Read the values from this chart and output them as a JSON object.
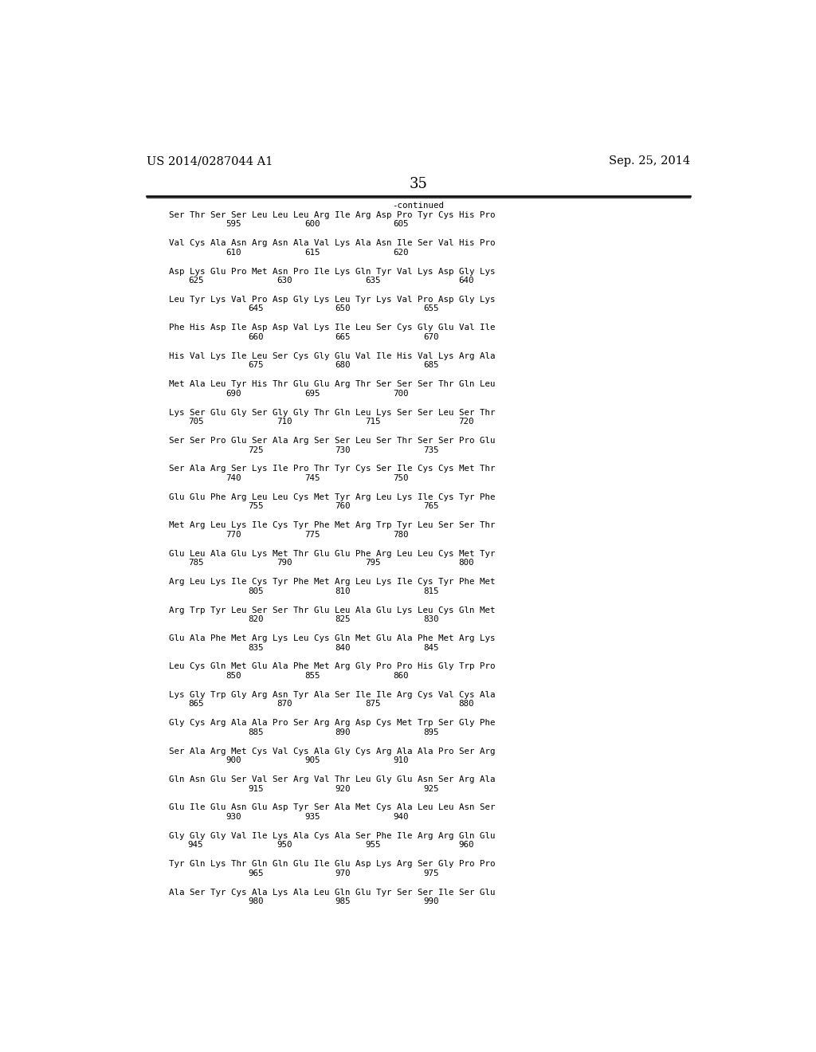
{
  "left_header": "US 2014/0287044 A1",
  "right_header": "Sep. 25, 2014",
  "page_number": "35",
  "continued_label": "-continued",
  "background_color": "#ffffff",
  "text_color": "#000000",
  "font_size_header": 10.5,
  "font_size_page": 13,
  "font_size_body": 7.8,
  "seq_data": [
    {
      "text": "Ser Thr Ser Ser Leu Leu Leu Arg Ile Arg Asp Pro Tyr Cys His Pro",
      "nums": [
        [
          "595",
          0.14
        ],
        [
          "600",
          0.31
        ],
        [
          "605",
          0.5
        ]
      ]
    },
    {
      "text": "Val Cys Ala Asn Arg Asn Ala Val Lys Ala Asn Ile Ser Val His Pro",
      "nums": [
        [
          "610",
          0.14
        ],
        [
          "615",
          0.31
        ],
        [
          "620",
          0.5
        ]
      ]
    },
    {
      "text": "Asp Lys Glu Pro Met Asn Pro Ile Lys Gln Tyr Val Lys Asp Gly Lys",
      "nums": [
        [
          "625",
          0.058
        ],
        [
          "630",
          0.25
        ],
        [
          "635",
          0.44
        ],
        [
          "640",
          0.64
        ]
      ]
    },
    {
      "text": "Leu Tyr Lys Val Pro Asp Gly Lys Leu Tyr Lys Val Pro Asp Gly Lys",
      "nums": [
        [
          "645",
          0.188
        ],
        [
          "650",
          0.375
        ],
        [
          "655",
          0.565
        ]
      ]
    },
    {
      "text": "Phe His Asp Ile Asp Asp Val Lys Ile Leu Ser Cys Gly Glu Val Ile",
      "nums": [
        [
          "660",
          0.188
        ],
        [
          "665",
          0.375
        ],
        [
          "670",
          0.565
        ]
      ]
    },
    {
      "text": "His Val Lys Ile Leu Ser Cys Gly Glu Val Ile His Val Lys Arg Ala",
      "nums": [
        [
          "675",
          0.188
        ],
        [
          "680",
          0.375
        ],
        [
          "685",
          0.565
        ]
      ]
    },
    {
      "text": "Met Ala Leu Tyr His Thr Glu Glu Arg Thr Ser Ser Ser Thr Gln Leu",
      "nums": [
        [
          "690",
          0.14
        ],
        [
          "695",
          0.31
        ],
        [
          "700",
          0.5
        ]
      ]
    },
    {
      "text": "Lys Ser Glu Gly Ser Gly Gly Thr Gln Leu Lys Ser Ser Leu Ser Thr",
      "nums": [
        [
          "705",
          0.058
        ],
        [
          "710",
          0.25
        ],
        [
          "715",
          0.44
        ],
        [
          "720",
          0.64
        ]
      ]
    },
    {
      "text": "Ser Ser Pro Glu Ser Ala Arg Ser Ser Leu Ser Thr Ser Ser Pro Glu",
      "nums": [
        [
          "725",
          0.188
        ],
        [
          "730",
          0.375
        ],
        [
          "735",
          0.565
        ]
      ]
    },
    {
      "text": "Ser Ala Arg Ser Lys Ile Pro Thr Tyr Cys Ser Ile Cys Cys Met Thr",
      "nums": [
        [
          "740",
          0.14
        ],
        [
          "745",
          0.31
        ],
        [
          "750",
          0.5
        ]
      ]
    },
    {
      "text": "Glu Glu Phe Arg Leu Leu Cys Met Tyr Arg Leu Lys Ile Cys Tyr Phe",
      "nums": [
        [
          "755",
          0.188
        ],
        [
          "760",
          0.375
        ],
        [
          "765",
          0.565
        ]
      ]
    },
    {
      "text": "Met Arg Leu Lys Ile Cys Tyr Phe Met Arg Trp Tyr Leu Ser Ser Thr",
      "nums": [
        [
          "770",
          0.14
        ],
        [
          "775",
          0.31
        ],
        [
          "780",
          0.5
        ]
      ]
    },
    {
      "text": "Glu Leu Ala Glu Lys Met Thr Glu Glu Phe Arg Leu Leu Cys Met Tyr",
      "nums": [
        [
          "785",
          0.058
        ],
        [
          "790",
          0.25
        ],
        [
          "795",
          0.44
        ],
        [
          "800",
          0.64
        ]
      ]
    },
    {
      "text": "Arg Leu Lys Ile Cys Tyr Phe Met Arg Leu Lys Ile Cys Tyr Phe Met",
      "nums": [
        [
          "805",
          0.188
        ],
        [
          "810",
          0.375
        ],
        [
          "815",
          0.565
        ]
      ]
    },
    {
      "text": "Arg Trp Tyr Leu Ser Ser Thr Glu Leu Ala Glu Lys Leu Cys Gln Met",
      "nums": [
        [
          "820",
          0.188
        ],
        [
          "825",
          0.375
        ],
        [
          "830",
          0.565
        ]
      ]
    },
    {
      "text": "Glu Ala Phe Met Arg Lys Leu Cys Gln Met Glu Ala Phe Met Arg Lys",
      "nums": [
        [
          "835",
          0.188
        ],
        [
          "840",
          0.375
        ],
        [
          "845",
          0.565
        ]
      ]
    },
    {
      "text": "Leu Cys Gln Met Glu Ala Phe Met Arg Gly Pro Pro His Gly Trp Pro",
      "nums": [
        [
          "850",
          0.14
        ],
        [
          "855",
          0.31
        ],
        [
          "860",
          0.5
        ]
      ]
    },
    {
      "text": "Lys Gly Trp Gly Arg Asn Tyr Ala Ser Ile Ile Arg Cys Val Cys Ala",
      "nums": [
        [
          "865",
          0.058
        ],
        [
          "870",
          0.25
        ],
        [
          "875",
          0.44
        ],
        [
          "880",
          0.64
        ]
      ]
    },
    {
      "text": "Gly Cys Arg Ala Ala Pro Ser Arg Arg Asp Cys Met Trp Ser Gly Phe",
      "nums": [
        [
          "885",
          0.188
        ],
        [
          "890",
          0.375
        ],
        [
          "895",
          0.565
        ]
      ]
    },
    {
      "text": "Ser Ala Arg Met Cys Val Cys Ala Gly Cys Arg Ala Ala Pro Ser Arg",
      "nums": [
        [
          "900",
          0.14
        ],
        [
          "905",
          0.31
        ],
        [
          "910",
          0.5
        ]
      ]
    },
    {
      "text": "Gln Asn Glu Ser Val Ser Arg Val Thr Leu Gly Glu Asn Ser Arg Ala",
      "nums": [
        [
          "915",
          0.188
        ],
        [
          "920",
          0.375
        ],
        [
          "925",
          0.565
        ]
      ]
    },
    {
      "text": "Glu Ile Glu Asn Glu Asp Tyr Ser Ala Met Cys Ala Leu Leu Asn Ser",
      "nums": [
        [
          "930",
          0.14
        ],
        [
          "935",
          0.31
        ],
        [
          "940",
          0.5
        ]
      ]
    },
    {
      "text": "Gly Gly Gly Val Ile Lys Ala Cys Ala Ser Phe Ile Arg Arg Gln Glu",
      "nums": [
        [
          "945",
          0.058
        ],
        [
          "950",
          0.25
        ],
        [
          "955",
          0.44
        ],
        [
          "960",
          0.64
        ]
      ]
    },
    {
      "text": "Tyr Gln Lys Thr Gln Gln Glu Ile Glu Asp Lys Arg Ser Gly Pro Pro",
      "nums": [
        [
          "965",
          0.188
        ],
        [
          "970",
          0.375
        ],
        [
          "975",
          0.565
        ]
      ]
    },
    {
      "text": "Ala Ser Tyr Cys Ala Lys Ala Leu Gln Glu Tyr Ser Ser Ile Ser Glu",
      "nums": [
        [
          "980",
          0.188
        ],
        [
          "985",
          0.375
        ],
        [
          "990",
          0.565
        ]
      ]
    }
  ]
}
